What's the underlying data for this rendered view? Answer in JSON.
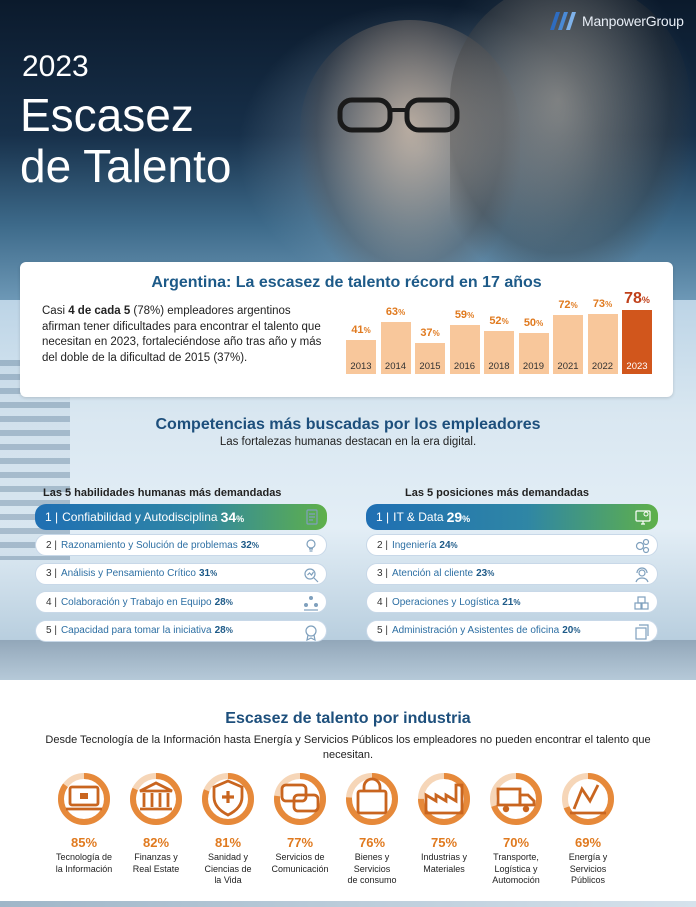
{
  "header": {
    "brand": "ManpowerGroup",
    "year": "2023",
    "title_line1": "Escasez",
    "title_line2": "de Talento"
  },
  "argentina": {
    "title": "Argentina: La escasez de talento récord en 17 años",
    "text_lead": "Casi ",
    "text_bold": "4 de cada 5",
    "text_rest": " (78%) empleadores argentinos afirman tener dificultades para encontrar el talento que necesitan en 2023, fortaleciéndose año tras año y más del doble de la dificultad de 2015 (37%).",
    "chart_data": {
      "type": "bar",
      "categories": [
        "2013",
        "2014",
        "2015",
        "2016",
        "2018",
        "2019",
        "2021",
        "2022",
        "2023"
      ],
      "values": [
        41,
        63,
        37,
        59,
        52,
        50,
        72,
        73,
        78
      ],
      "unit": "%",
      "highlight": "2023",
      "bar_color": "#f8c79b",
      "highlight_color": "#d1561c",
      "label_color": "#e07a1f"
    }
  },
  "competencias": {
    "title": "Competencias más buscadas por los empleadores",
    "subtitle": "Las fortalezas humanas destacan en la era digital.",
    "habilidades": {
      "title": "Las 5 habilidades humanas más demandadas",
      "items": [
        {
          "num": "1 |",
          "label": "Confiabilidad y Autodisciplina",
          "pct": "34",
          "unit": "%",
          "icon": "checklist-icon"
        },
        {
          "num": "2 |",
          "label": "Razonamiento y Solución de problemas",
          "pct": "32",
          "unit": "%",
          "icon": "lightbulb-icon"
        },
        {
          "num": "3 |",
          "label": "Análisis y Pensamiento Crítico",
          "pct": "31",
          "unit": "%",
          "icon": "magnifier-chart-icon"
        },
        {
          "num": "4 |",
          "label": "Colaboración y Trabajo en Equipo",
          "pct": "28",
          "unit": "%",
          "icon": "team-icon"
        },
        {
          "num": "5 |",
          "label": "Capacidad para tomar la iniciativa",
          "pct": "28",
          "unit": "%",
          "icon": "award-icon"
        }
      ]
    },
    "posiciones": {
      "title": "Las 5 posiciones más demandadas",
      "items": [
        {
          "num": "1 |",
          "label": "IT & Data",
          "pct": "29",
          "unit": "%",
          "icon": "monitor-gear-icon"
        },
        {
          "num": "2 |",
          "label": "Ingeniería",
          "pct": "24",
          "unit": "%",
          "icon": "gears-icon"
        },
        {
          "num": "3 |",
          "label": "Atención al cliente",
          "pct": "23",
          "unit": "%",
          "icon": "customer-service-icon"
        },
        {
          "num": "4 |",
          "label": "Operaciones y Logística",
          "pct": "21",
          "unit": "%",
          "icon": "boxes-icon"
        },
        {
          "num": "5 |",
          "label": "Administración y Asistentes de oficina",
          "pct": "20",
          "unit": "%",
          "icon": "documents-icon"
        }
      ]
    }
  },
  "industria": {
    "title": "Escasez de talento por industria",
    "subtitle": "Desde Tecnología de la Información hasta Energía y Servicios Públicos los empleadores no pueden encontrar el talento que necesitan.",
    "items": [
      {
        "pct_value": 85,
        "pct": "85%",
        "label": "Tecnología de\nla Información",
        "icon": "laptop-lock-icon"
      },
      {
        "pct_value": 82,
        "pct": "82%",
        "label": "Finanzas y\nReal Estate",
        "icon": "bank-chart-icon"
      },
      {
        "pct_value": 81,
        "pct": "81%",
        "label": "Sanidad y\nCiencias de\nla Vida",
        "icon": "medical-shield-icon"
      },
      {
        "pct_value": 77,
        "pct": "77%",
        "label": "Servicios de\nComunicación",
        "icon": "chat-bubbles-icon"
      },
      {
        "pct_value": 76,
        "pct": "76%",
        "label": "Bienes y Servicios\nde consumo",
        "icon": "shopping-bag-icon"
      },
      {
        "pct_value": 75,
        "pct": "75%",
        "label": "Industrias y\nMateriales",
        "icon": "factory-icon"
      },
      {
        "pct_value": 70,
        "pct": "70%",
        "label": "Transporte,\nLogística y\nAutomoción",
        "icon": "truck-icon"
      },
      {
        "pct_value": 69,
        "pct": "69%",
        "label": "Energía y\nServicios Públicos",
        "icon": "energy-icon"
      }
    ],
    "donut_color": "#e6893a",
    "donut_track": "#f6d6b8"
  }
}
